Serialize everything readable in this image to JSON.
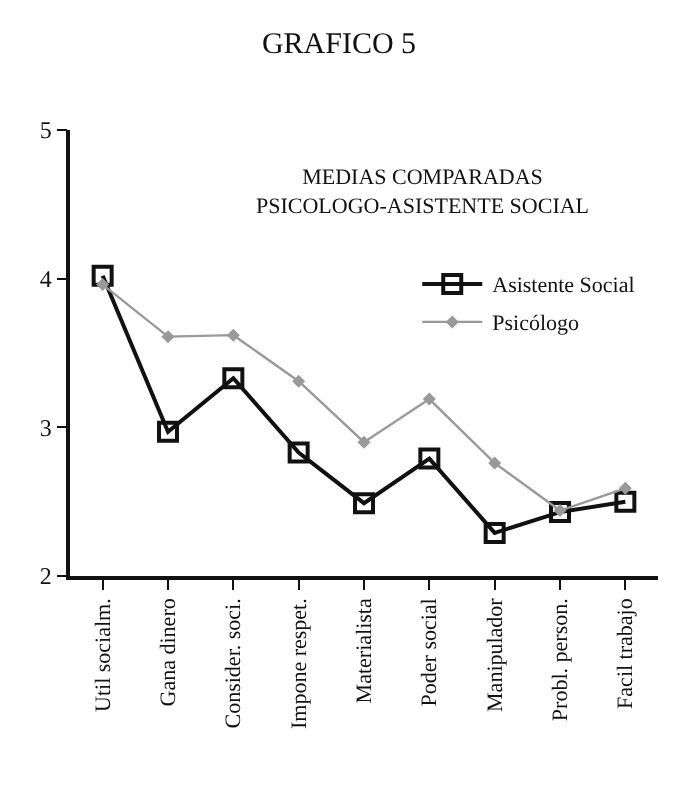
{
  "chart_data": {
    "type": "line",
    "title": "GRAFICO 5",
    "subtitle": "MEDIAS COMPARADAS\nPSICOLOGO-ASISTENTE SOCIAL",
    "categories": [
      "Util socialm.",
      "Gana dinero",
      "Consider. soci.",
      "Impone respet.",
      "Materialista",
      "Poder social",
      "Manipulador",
      "Probl. person.",
      "Facil trabajo"
    ],
    "series": [
      {
        "name": "Asistente Social",
        "color": "#111111",
        "marker": "square",
        "values": [
          4.02,
          2.97,
          3.33,
          2.83,
          2.49,
          2.79,
          2.29,
          2.43,
          2.5
        ]
      },
      {
        "name": "Psicólogo",
        "color": "#999999",
        "marker": "diamond",
        "values": [
          3.96,
          3.61,
          3.62,
          3.31,
          2.9,
          3.19,
          2.76,
          2.44,
          2.59
        ]
      }
    ],
    "ylim": [
      2,
      5
    ],
    "yticks": [
      2,
      3,
      4,
      5
    ],
    "grid": false,
    "legend": "top right"
  }
}
